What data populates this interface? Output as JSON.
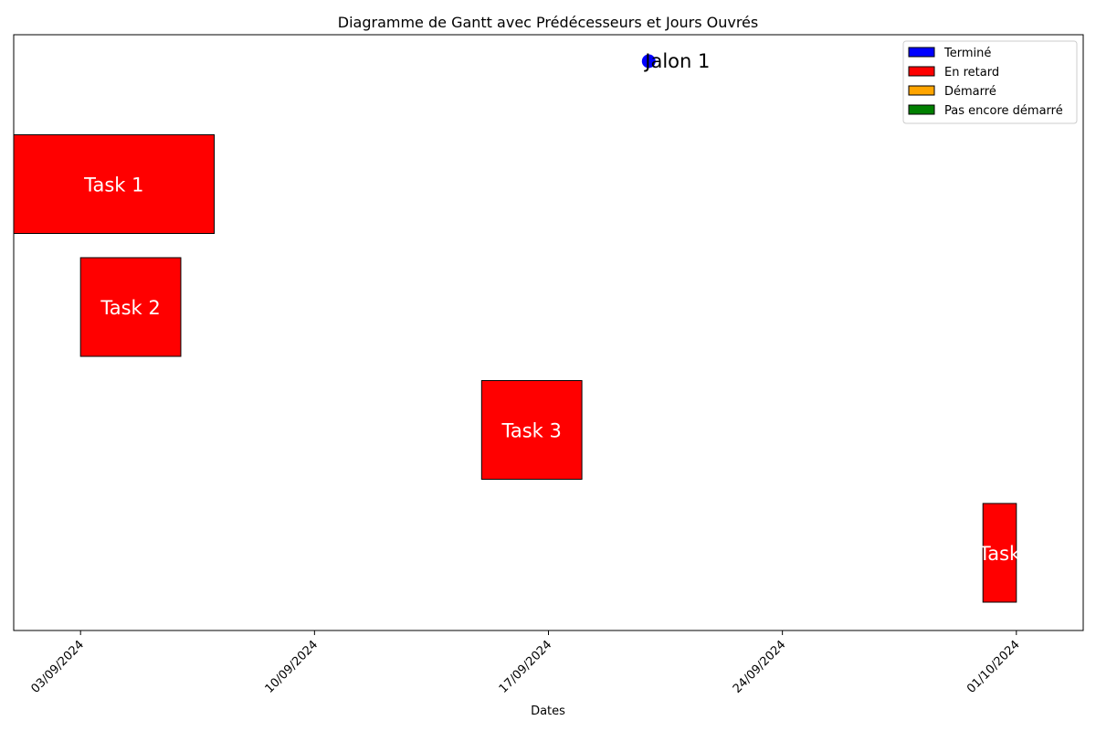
{
  "chart_data": {
    "type": "gantt",
    "title": "Diagramme de Gantt avec Prédécesseurs et Jours Ouvrés",
    "xlabel": "Dates",
    "ylabel": "",
    "xlim": [
      "2024-09-01",
      "2024-10-03"
    ],
    "x_ticks": [
      {
        "date": "2024-09-03",
        "label": "03/09/2024"
      },
      {
        "date": "2024-09-10",
        "label": "10/09/2024"
      },
      {
        "date": "2024-09-17",
        "label": "17/09/2024"
      },
      {
        "date": "2024-09-24",
        "label": "24/09/2024"
      },
      {
        "date": "2024-10-01",
        "label": "01/10/2024"
      }
    ],
    "tasks": [
      {
        "name": "Task 1",
        "start": "2024-09-01",
        "end": "2024-09-07",
        "status": "En retard"
      },
      {
        "name": "Task 2",
        "start": "2024-09-03",
        "end": "2024-09-06",
        "status": "En retard"
      },
      {
        "name": "Task 3",
        "start": "2024-09-15",
        "end": "2024-09-18",
        "status": "En retard"
      },
      {
        "name": "Task",
        "start": "2024-09-30",
        "end": "2024-10-01",
        "status": "En retard"
      }
    ],
    "milestones": [
      {
        "name": "Jalon 1",
        "date": "2024-09-20",
        "status": "Terminé"
      }
    ],
    "legend": {
      "placement": "top-right",
      "entries": [
        {
          "label": "Terminé",
          "color": "#0000ff"
        },
        {
          "label": "En retard",
          "color": "#ff0000"
        },
        {
          "label": "Démarré",
          "color": "#ffa500"
        },
        {
          "label": "Pas encore démarré",
          "color": "#008000"
        }
      ]
    },
    "grid": false
  }
}
